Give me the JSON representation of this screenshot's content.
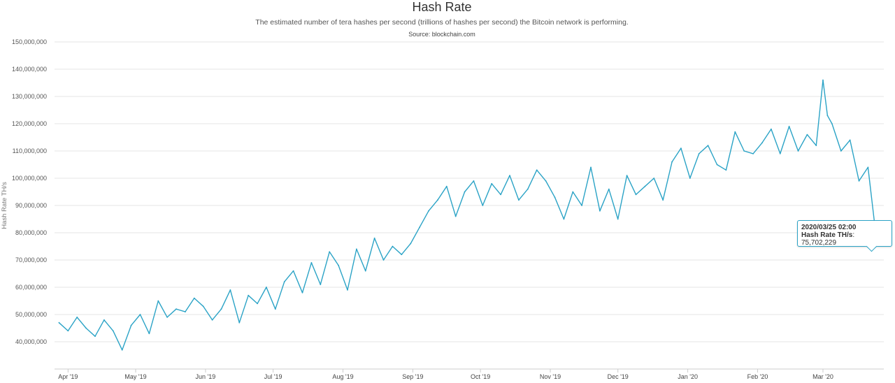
{
  "header": {
    "title": "Hash Rate",
    "subtitle": "The estimated number of tera hashes per second (trillions of hashes per second) the Bitcoin network is performing.",
    "source": "Source: blockchain.com"
  },
  "tooltip": {
    "date": "2020/03/25 02:00",
    "label": "Hash Rate TH/s",
    "value": "75,702,229"
  },
  "chart_data": {
    "type": "line",
    "title": "Hash Rate",
    "ylabel": "Hash Rate TH/s",
    "xlabel": "",
    "ylim": [
      30000000,
      150000000
    ],
    "xlim": [
      "2019-03-26",
      "2020-03-28"
    ],
    "grid": true,
    "legend": "none",
    "line_color": "#2ba3c6",
    "y_ticks": [
      "40,000,000",
      "50,000,000",
      "60,000,000",
      "70,000,000",
      "80,000,000",
      "90,000,000",
      "100,000,000",
      "110,000,000",
      "120,000,000",
      "130,000,000",
      "140,000,000",
      "150,000,000"
    ],
    "y_tick_values": [
      40000000,
      50000000,
      60000000,
      70000000,
      80000000,
      90000000,
      100000000,
      110000000,
      120000000,
      130000000,
      140000000,
      150000000
    ],
    "x_ticks": [
      "Apr '19",
      "May '19",
      "Jun '19",
      "Jul '19",
      "Aug '19",
      "Sep '19",
      "Oct '19",
      "Nov '19",
      "Dec '19",
      "Jan '20",
      "Feb '20",
      "Mar '20"
    ],
    "x_tick_dates": [
      "2019-04-01",
      "2019-05-01",
      "2019-06-01",
      "2019-07-01",
      "2019-08-01",
      "2019-09-01",
      "2019-10-01",
      "2019-11-01",
      "2019-12-01",
      "2020-01-01",
      "2020-02-01",
      "2020-03-01"
    ],
    "series": [
      {
        "x": [
          "2019-03-28",
          "2019-04-01",
          "2019-04-05",
          "2019-04-09",
          "2019-04-13",
          "2019-04-17",
          "2019-04-21",
          "2019-04-25",
          "2019-04-29",
          "2019-05-03",
          "2019-05-07",
          "2019-05-11",
          "2019-05-15",
          "2019-05-19",
          "2019-05-23",
          "2019-05-27",
          "2019-05-31",
          "2019-06-04",
          "2019-06-08",
          "2019-06-12",
          "2019-06-16",
          "2019-06-20",
          "2019-06-24",
          "2019-06-28",
          "2019-07-02",
          "2019-07-06",
          "2019-07-10",
          "2019-07-14",
          "2019-07-18",
          "2019-07-22",
          "2019-07-26",
          "2019-07-30",
          "2019-08-03",
          "2019-08-07",
          "2019-08-11",
          "2019-08-15",
          "2019-08-19",
          "2019-08-23",
          "2019-08-27",
          "2019-08-31",
          "2019-09-04",
          "2019-09-08",
          "2019-09-12",
          "2019-09-16",
          "2019-09-20",
          "2019-09-24",
          "2019-09-28",
          "2019-10-02",
          "2019-10-06",
          "2019-10-10",
          "2019-10-14",
          "2019-10-18",
          "2019-10-22",
          "2019-10-26",
          "2019-10-30",
          "2019-11-03",
          "2019-11-07",
          "2019-11-11",
          "2019-11-15",
          "2019-11-19",
          "2019-11-23",
          "2019-11-27",
          "2019-12-01",
          "2019-12-05",
          "2019-12-09",
          "2019-12-13",
          "2019-12-17",
          "2019-12-21",
          "2019-12-25",
          "2019-12-29",
          "2020-01-02",
          "2020-01-06",
          "2020-01-10",
          "2020-01-14",
          "2020-01-18",
          "2020-01-22",
          "2020-01-26",
          "2020-01-30",
          "2020-02-03",
          "2020-02-07",
          "2020-02-11",
          "2020-02-15",
          "2020-02-19",
          "2020-02-23",
          "2020-02-27",
          "2020-03-01",
          "2020-03-03",
          "2020-03-05",
          "2020-03-09",
          "2020-03-13",
          "2020-03-17",
          "2020-03-21",
          "2020-03-25"
        ],
        "values": [
          47000000,
          44000000,
          49000000,
          45000000,
          42000000,
          48000000,
          44000000,
          37000000,
          46000000,
          50000000,
          43000000,
          55000000,
          49000000,
          52000000,
          51000000,
          56000000,
          53000000,
          48000000,
          52000000,
          59000000,
          47000000,
          57000000,
          54000000,
          60000000,
          52000000,
          62000000,
          66000000,
          58000000,
          69000000,
          61000000,
          73000000,
          68000000,
          59000000,
          74000000,
          66000000,
          78000000,
          70000000,
          75000000,
          72000000,
          76000000,
          82000000,
          88000000,
          92000000,
          97000000,
          86000000,
          95000000,
          99000000,
          90000000,
          98000000,
          94000000,
          101000000,
          92000000,
          96000000,
          103000000,
          99000000,
          93000000,
          85000000,
          95000000,
          90000000,
          104000000,
          88000000,
          96000000,
          85000000,
          101000000,
          94000000,
          97000000,
          100000000,
          92000000,
          106000000,
          111000000,
          100000000,
          109000000,
          112000000,
          105000000,
          103000000,
          117000000,
          110000000,
          109000000,
          113000000,
          118000000,
          109000000,
          119000000,
          110000000,
          116000000,
          112000000,
          136000000,
          123000000,
          120000000,
          110000000,
          114000000,
          99000000,
          104000000,
          75702229
        ]
      }
    ]
  }
}
